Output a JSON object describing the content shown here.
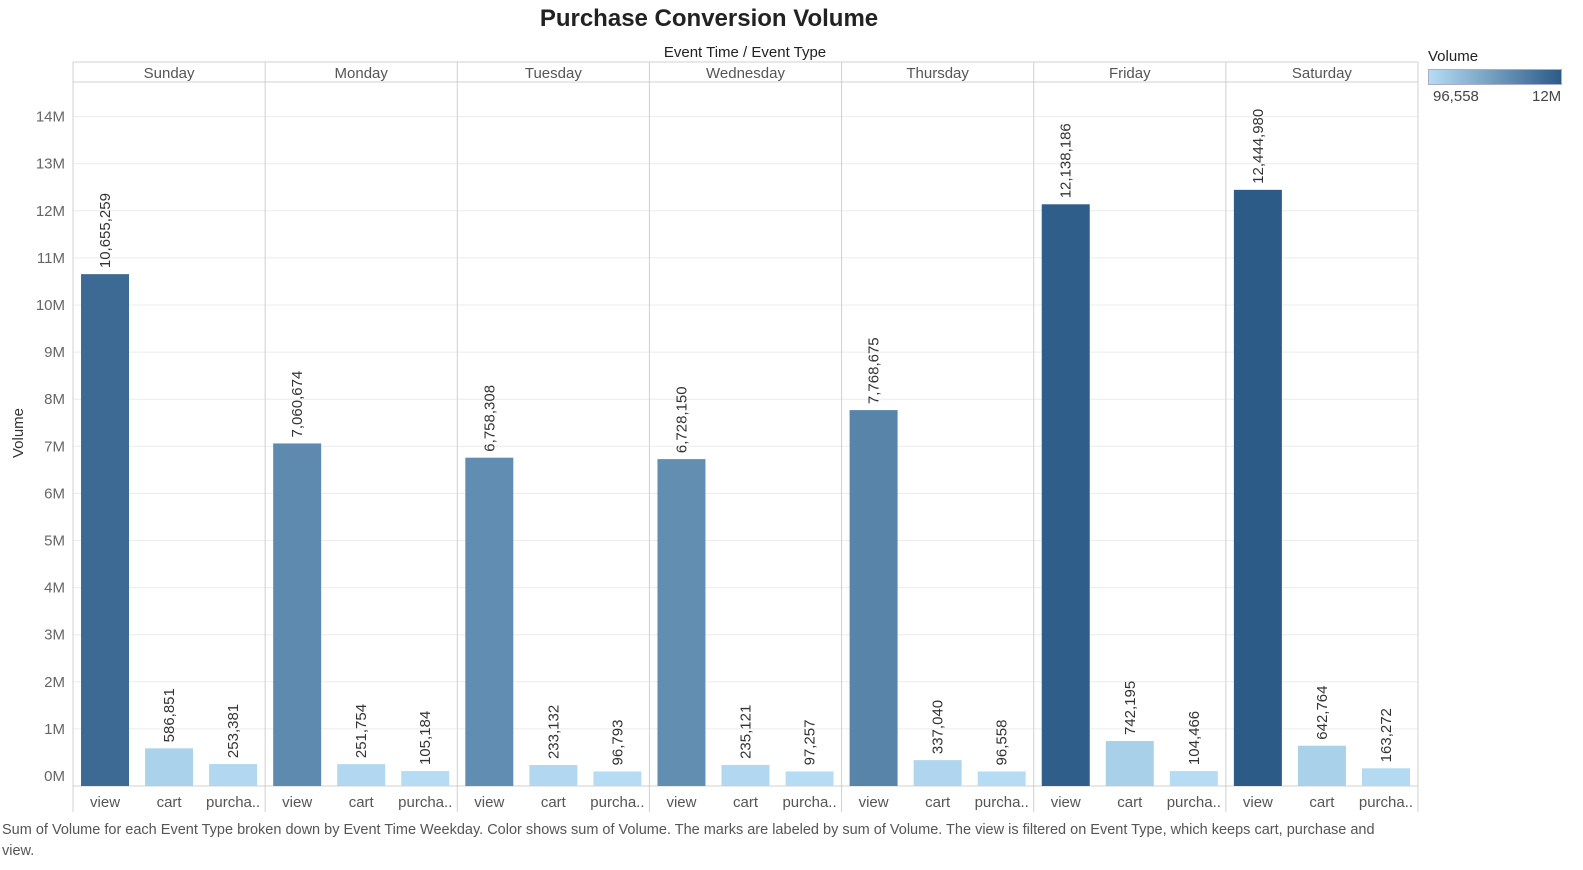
{
  "title": "Purchase Conversion Volume",
  "header_label": "Event Time  /  Event Type",
  "legend": {
    "title": "Volume",
    "min_label": "96,558",
    "max_label": "12M",
    "color_min": "#b5dcf3",
    "color_max": "#2d5b88"
  },
  "caption": "Sum of Volume for each Event Type broken down by Event Time Weekday.  Color shows sum of Volume.  The marks are labeled by sum of Volume. The view is filtered on Event Type, which keeps cart, purchase and view.",
  "chart_data": {
    "type": "bar",
    "title": "Purchase Conversion Volume",
    "ylabel": "Volume",
    "ylim": [
      0,
      15000000
    ],
    "yticks": [
      0,
      1000000,
      2000000,
      3000000,
      4000000,
      5000000,
      6000000,
      7000000,
      8000000,
      9000000,
      10000000,
      11000000,
      12000000,
      13000000,
      14000000
    ],
    "ytick_labels": [
      "0M",
      "1M",
      "2M",
      "3M",
      "4M",
      "5M",
      "6M",
      "7M",
      "8M",
      "9M",
      "10M",
      "11M",
      "12M",
      "13M",
      "14M"
    ],
    "grid": true,
    "legend_position": "top-right",
    "category_labels": [
      "view",
      "cart",
      "purcha.."
    ],
    "panes": [
      {
        "name": "Sunday",
        "values": [
          10655259,
          586851,
          253381
        ],
        "labels": [
          "10,655,259",
          "586,851",
          "253,381"
        ]
      },
      {
        "name": "Monday",
        "values": [
          7060674,
          251754,
          105184
        ],
        "labels": [
          "7,060,674",
          "251,754",
          "105,184"
        ]
      },
      {
        "name": "Tuesday",
        "values": [
          6758308,
          233132,
          96793
        ],
        "labels": [
          "6,758,308",
          "233,132",
          "96,793"
        ]
      },
      {
        "name": "Wednesday",
        "values": [
          6728150,
          235121,
          97257
        ],
        "labels": [
          "6,728,150",
          "235,121",
          "97,257"
        ]
      },
      {
        "name": "Thursday",
        "values": [
          7768675,
          337040,
          96558
        ],
        "labels": [
          "7,768,675",
          "337,040",
          "96,558"
        ]
      },
      {
        "name": "Friday",
        "values": [
          12138186,
          742195,
          104466
        ],
        "labels": [
          "12,138,186",
          "742,195",
          "104,466"
        ]
      },
      {
        "name": "Saturday",
        "values": [
          12444980,
          642764,
          163272
        ],
        "labels": [
          "12,444,980",
          "642,764",
          "163,272"
        ]
      }
    ]
  }
}
